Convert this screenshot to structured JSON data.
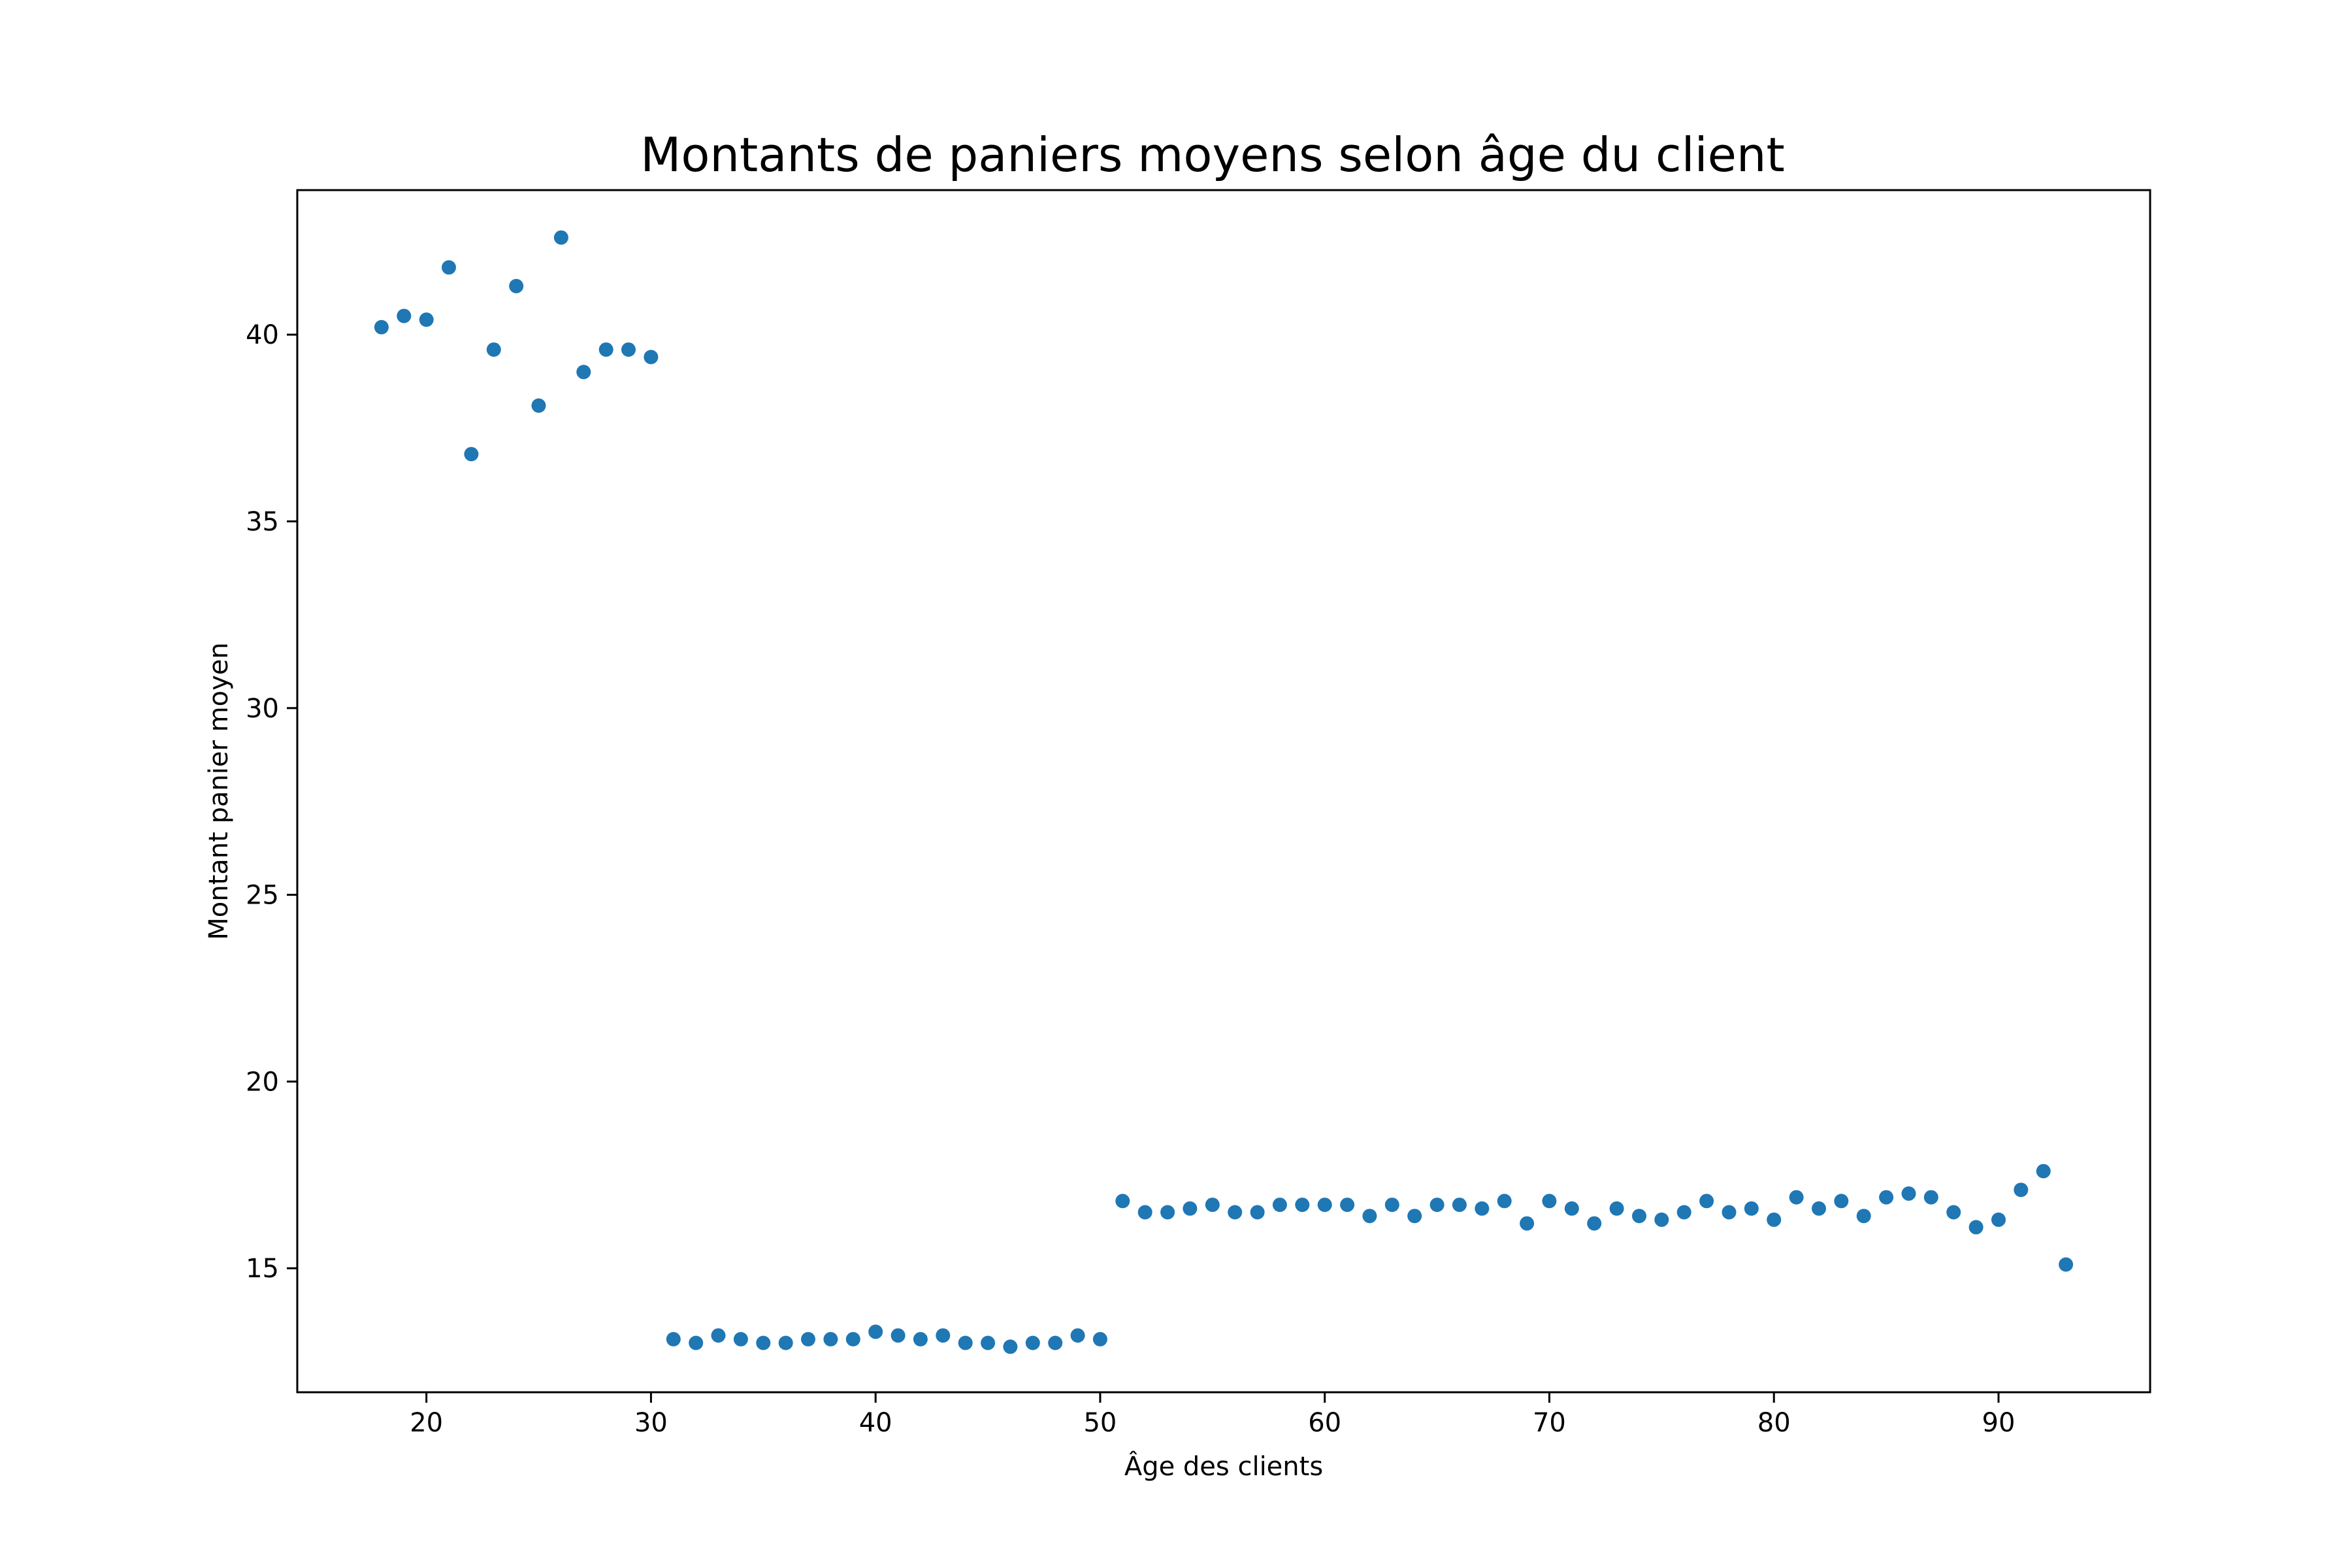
{
  "chart_data": {
    "type": "scatter",
    "title": "Montants de paniers moyens selon âge du client",
    "xlabel": "Âge des clients",
    "ylabel": "Montant panier moyen",
    "xlim": [
      14.25,
      96.75
    ],
    "ylim": [
      11.68,
      43.87
    ],
    "xticks": [
      "20",
      "30",
      "40",
      "50",
      "60",
      "70",
      "80",
      "90"
    ],
    "yticks": [
      "15",
      "20",
      "25",
      "30",
      "35",
      "40"
    ],
    "grid": false,
    "marker_color": "#1f77b4",
    "series": [
      {
        "x": [
          18,
          19,
          20,
          21,
          22,
          23,
          24,
          25,
          26,
          27,
          28,
          29,
          30,
          31,
          32,
          33,
          34,
          35,
          36,
          37,
          38,
          39,
          40,
          41,
          42,
          43,
          44,
          45,
          46,
          47,
          48,
          49,
          50,
          51,
          52,
          53,
          54,
          55,
          56,
          57,
          58,
          59,
          60,
          61,
          62,
          63,
          64,
          65,
          66,
          67,
          68,
          69,
          70,
          71,
          72,
          73,
          74,
          75,
          76,
          77,
          78,
          79,
          80,
          81,
          82,
          83,
          84,
          85,
          86,
          87,
          88,
          89,
          90,
          91,
          92,
          93
        ],
        "y": [
          40.2,
          40.5,
          40.4,
          41.8,
          36.8,
          39.6,
          41.3,
          38.1,
          42.6,
          39.0,
          39.6,
          39.6,
          39.4,
          13.1,
          13.0,
          13.2,
          13.1,
          13.0,
          13.0,
          13.1,
          13.1,
          13.1,
          13.3,
          13.2,
          13.1,
          13.2,
          13.0,
          13.0,
          12.9,
          13.0,
          13.0,
          13.2,
          13.1,
          16.8,
          16.5,
          16.5,
          16.6,
          16.7,
          16.5,
          16.5,
          16.7,
          16.7,
          16.7,
          16.7,
          16.4,
          16.7,
          16.4,
          16.7,
          16.7,
          16.6,
          16.8,
          16.2,
          16.8,
          16.6,
          16.2,
          16.6,
          16.4,
          16.3,
          16.5,
          16.8,
          16.5,
          16.6,
          16.3,
          16.9,
          16.6,
          16.8,
          16.4,
          16.9,
          17.0,
          16.9,
          16.5,
          16.1,
          16.3,
          17.1,
          17.6,
          15.1
        ]
      }
    ]
  }
}
